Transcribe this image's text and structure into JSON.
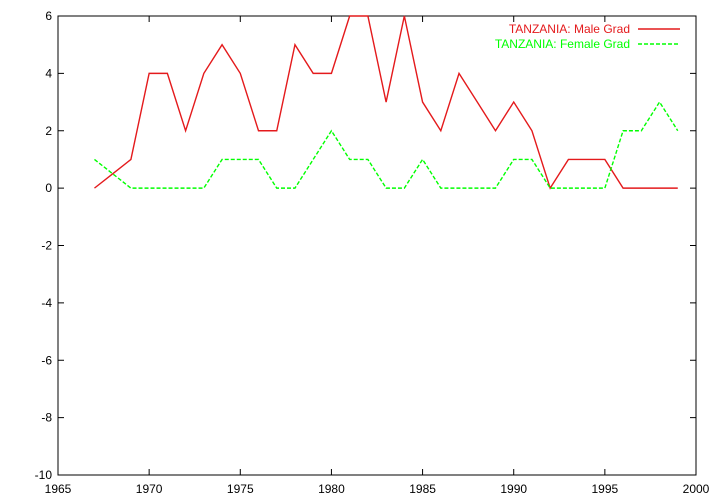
{
  "chart_data": {
    "type": "line",
    "title": "",
    "xlabel": "",
    "ylabel": "",
    "xlim": [
      1965,
      2000
    ],
    "ylim": [
      -10,
      6
    ],
    "xticks": [
      1965,
      1970,
      1975,
      1980,
      1985,
      1990,
      1995,
      2000
    ],
    "yticks": [
      -10,
      -8,
      -6,
      -4,
      -2,
      0,
      2,
      4,
      6
    ],
    "grid": false,
    "legend_position": "top-right",
    "x": [
      1967,
      1968,
      1969,
      1970,
      1971,
      1972,
      1973,
      1974,
      1975,
      1976,
      1977,
      1978,
      1979,
      1980,
      1981,
      1982,
      1983,
      1984,
      1985,
      1986,
      1987,
      1988,
      1989,
      1990,
      1991,
      1992,
      1993,
      1994,
      1995,
      1996,
      1997,
      1998,
      1999
    ],
    "series": [
      {
        "name": "TANZANIA: Male Grad",
        "color": "#e41a1c",
        "dash": "solid",
        "values": [
          0,
          0.5,
          1,
          4,
          4,
          2,
          4,
          5,
          4,
          2,
          2,
          5,
          4,
          4,
          6,
          6,
          3,
          6,
          3,
          2,
          4,
          3,
          2,
          3,
          2,
          0,
          1,
          1,
          1,
          0,
          0,
          0,
          0
        ]
      },
      {
        "name": "TANZANIA: Female Grad",
        "color": "#00ff00",
        "dash": "dashed",
        "values": [
          1,
          0.5,
          0,
          0,
          0,
          0,
          0,
          1,
          1,
          1,
          0,
          0,
          1,
          2,
          1,
          1,
          0,
          0,
          1,
          0,
          0,
          0,
          0,
          1,
          1,
          0,
          0,
          0,
          0,
          2,
          2,
          3,
          2
        ]
      }
    ]
  }
}
